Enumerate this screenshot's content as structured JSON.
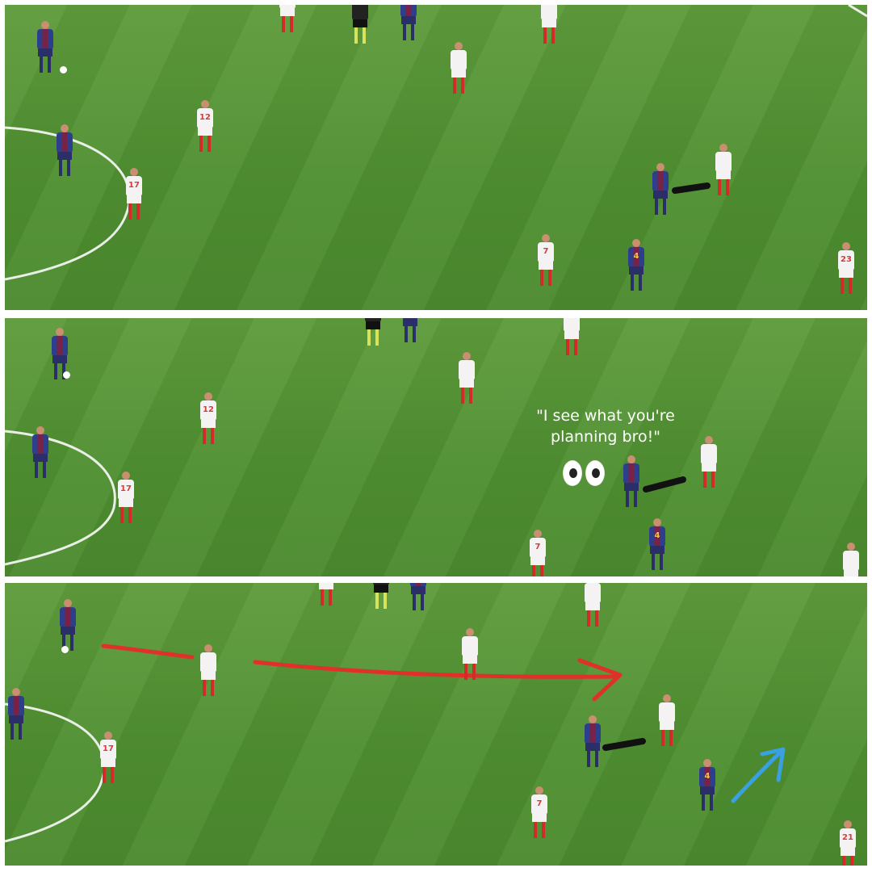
{
  "caption": {
    "line1": "\"I see what you're",
    "line2": "planning bro!\""
  },
  "emoji": "eyes-emoji",
  "colors": {
    "pitch": "#4f8f31",
    "arrow_red": "#e0302a",
    "arrow_blue": "#3aa0e0",
    "marker_black": "#111111"
  },
  "numbers": {
    "sevilla_12": "12",
    "sevilla_17": "17",
    "sevilla_7": "7",
    "sevilla_23": "23",
    "sevilla_21": "21",
    "barca_4": "4"
  }
}
